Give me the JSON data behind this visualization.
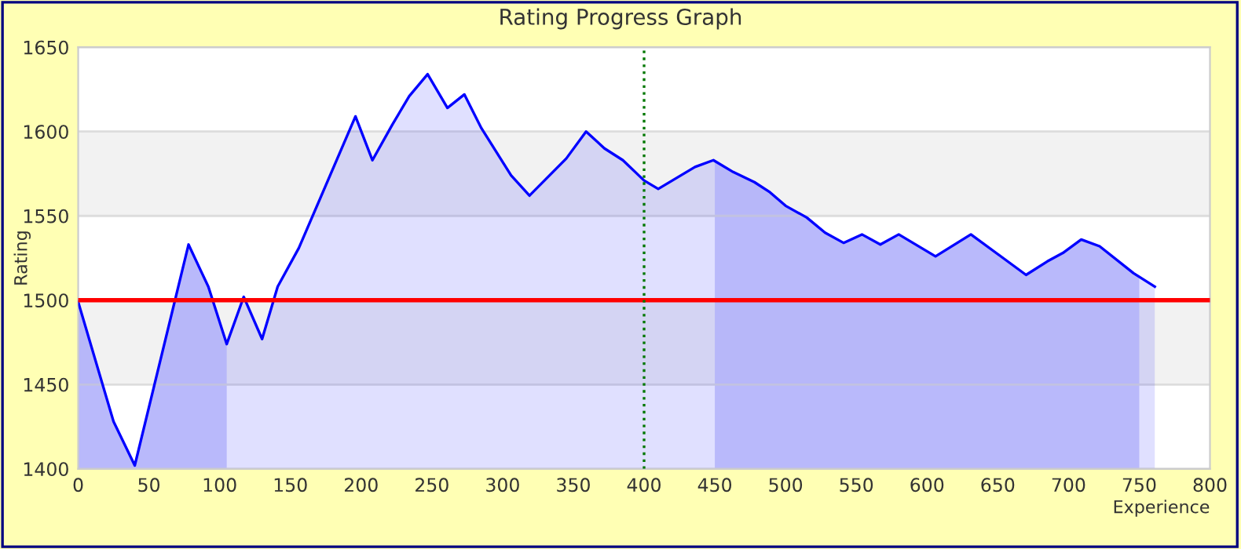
{
  "chart_data": {
    "type": "area",
    "title": "Rating Progress Graph",
    "xlabel": "Experience",
    "ylabel": "Rating",
    "xlim": [
      0,
      800
    ],
    "xticks": [
      0,
      50,
      100,
      150,
      200,
      250,
      300,
      350,
      400,
      450,
      500,
      550,
      600,
      650,
      700,
      750,
      800
    ],
    "ylim": [
      1400,
      1650
    ],
    "yticks": [
      1400,
      1450,
      1500,
      1550,
      1600,
      1650
    ],
    "grid": "y",
    "series": [
      {
        "color": "#0000ff",
        "x": [
          0,
          25,
          40,
          78,
          92,
          105,
          117,
          130,
          141,
          156,
          196,
          208,
          222,
          234,
          247,
          261,
          273,
          285,
          306,
          319,
          345,
          359,
          372,
          385,
          400,
          410,
          436,
          449,
          463,
          478,
          489,
          500,
          515,
          528,
          541,
          554,
          567,
          580,
          606,
          631,
          670,
          685,
          696,
          709,
          722,
          746,
          761
        ],
        "values": [
          1499,
          1428,
          1402,
          1533,
          1508,
          1474,
          1502,
          1477,
          1508,
          1531,
          1609,
          1583,
          1604,
          1621,
          1634,
          1614,
          1622,
          1602,
          1574,
          1562,
          1584,
          1600,
          1590,
          1583,
          1571,
          1566,
          1579,
          1583,
          1576,
          1570,
          1564,
          1556,
          1549,
          1540,
          1534,
          1539,
          1533,
          1539,
          1526,
          1539,
          1515,
          1523,
          1528,
          1536,
          1532,
          1516,
          1508
        ]
      }
    ],
    "ref_lines": [
      {
        "axis": "y",
        "value": 1500,
        "color": "#ff0000",
        "line_style": "solid"
      },
      {
        "axis": "x",
        "value": 400,
        "color": "#007700",
        "line_style": "dotted"
      }
    ],
    "bands": [
      {
        "axis": "x",
        "from": 0,
        "to": 105,
        "color": "#c8c8fa"
      },
      {
        "axis": "x",
        "from": 450,
        "to": 750,
        "color": "#c8c8fa"
      }
    ]
  }
}
